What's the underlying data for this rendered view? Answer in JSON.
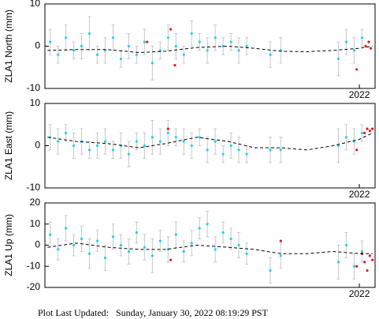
{
  "chart_data": [
    {
      "type": "scatter",
      "ylabel": "ZLA1 North (mm)",
      "xlim": [
        2016,
        2022.3
      ],
      "xticks": [
        2022
      ],
      "ylim": [
        -10,
        10
      ],
      "yticks": [
        -10,
        0,
        10
      ],
      "series": [
        {
          "color": "#22d3ee",
          "style": "points",
          "x": [
            2016.1,
            2016.25,
            2016.4,
            2016.55,
            2016.7,
            2016.85,
            2017.0,
            2017.15,
            2017.3,
            2017.45,
            2017.6,
            2017.75,
            2017.9,
            2018.05,
            2018.2,
            2018.35,
            2018.5,
            2018.65,
            2018.8,
            2018.95,
            2019.1,
            2019.25,
            2019.4,
            2019.55,
            2019.7,
            2019.85,
            2020.3,
            2020.5,
            2021.6,
            2021.75,
            2021.9,
            2022.05
          ],
          "values": [
            1,
            -2,
            2,
            -1,
            0,
            3,
            -2,
            -1,
            2,
            -3,
            0,
            -2,
            1,
            -4,
            -1,
            2,
            0,
            -2,
            3,
            1,
            -1,
            2,
            0,
            1,
            -1,
            0,
            -2,
            -1,
            -3,
            1,
            -1,
            2
          ],
          "errors": [
            3,
            2,
            3,
            2,
            3,
            4,
            2,
            3,
            3,
            2,
            3,
            2,
            3,
            4,
            2,
            3,
            3,
            2,
            3,
            2,
            3,
            3,
            2,
            2,
            3,
            2,
            3,
            3,
            4,
            3,
            3,
            2
          ]
        },
        {
          "color": "#e41a1c",
          "style": "points",
          "x": [
            2017.95,
            2018.4,
            2018.48,
            2021.95,
            2022.12,
            2022.18,
            2022.22
          ],
          "values": [
            1,
            4,
            -4.5,
            -5.5,
            0,
            1,
            -0.5
          ]
        },
        {
          "color": "#000000",
          "style": "dashed-line",
          "x": [
            2016.05,
            2016.6,
            2017.2,
            2017.8,
            2018.3,
            2018.9,
            2019.5,
            2020.0,
            2020.5,
            2021.0,
            2021.5,
            2022.0,
            2022.25
          ],
          "values": [
            -1,
            -0.8,
            -0.8,
            -1.5,
            -1.2,
            -0.3,
            0,
            -0.5,
            -1.2,
            -1.3,
            -1,
            -0.5,
            0
          ]
        }
      ]
    },
    {
      "type": "scatter",
      "ylabel": "ZLA1 East (mm)",
      "xlim": [
        2016,
        2022.3
      ],
      "xticks": [
        2022
      ],
      "ylim": [
        -10,
        10
      ],
      "yticks": [
        -10,
        0,
        10
      ],
      "series": [
        {
          "color": "#22d3ee",
          "style": "points",
          "x": [
            2016.1,
            2016.25,
            2016.4,
            2016.55,
            2016.7,
            2016.85,
            2017.0,
            2017.15,
            2017.3,
            2017.45,
            2017.6,
            2017.75,
            2017.9,
            2018.05,
            2018.2,
            2018.35,
            2018.5,
            2018.65,
            2018.8,
            2018.95,
            2019.1,
            2019.25,
            2019.4,
            2019.55,
            2019.7,
            2019.85,
            2020.3,
            2020.5,
            2021.6,
            2021.75,
            2021.9,
            2022.05
          ],
          "values": [
            2,
            1,
            3,
            0,
            1,
            -1,
            0,
            1,
            -1,
            0,
            -2,
            1,
            0,
            2,
            1,
            3,
            2,
            1,
            0,
            2,
            -1,
            1,
            -2,
            0,
            -1,
            -2,
            -1,
            -1,
            0,
            2,
            1,
            3
          ],
          "errors": [
            3,
            3,
            2,
            3,
            3,
            2,
            3,
            3,
            2,
            3,
            3,
            2,
            3,
            4,
            3,
            3,
            2,
            3,
            3,
            2,
            3,
            3,
            2,
            3,
            3,
            2,
            3,
            3,
            4,
            3,
            3,
            2
          ]
        },
        {
          "color": "#e41a1c",
          "style": "points",
          "x": [
            2018.35,
            2021.95,
            2022.1,
            2022.15,
            2022.2,
            2022.25
          ],
          "values": [
            4,
            -1,
            3,
            4,
            3.5,
            4
          ]
        },
        {
          "color": "#000000",
          "style": "dashed-line",
          "x": [
            2016.05,
            2016.6,
            2017.2,
            2017.8,
            2018.3,
            2018.9,
            2019.5,
            2020.0,
            2020.5,
            2021.0,
            2021.5,
            2022.0,
            2022.25
          ],
          "values": [
            2,
            1,
            0.5,
            -0.5,
            0.5,
            2,
            1,
            -0.5,
            -0.5,
            -1,
            0,
            1.5,
            3
          ]
        }
      ]
    },
    {
      "type": "scatter",
      "ylabel": "ZLA1 Up (mm)",
      "xlim": [
        2016,
        2022.3
      ],
      "xticks": [
        2022
      ],
      "ylim": [
        -20,
        20
      ],
      "yticks": [
        -20,
        -10,
        0,
        10,
        20
      ],
      "series": [
        {
          "color": "#22d3ee",
          "style": "points",
          "x": [
            2016.1,
            2016.25,
            2016.4,
            2016.55,
            2016.7,
            2016.85,
            2017.0,
            2017.15,
            2017.3,
            2017.45,
            2017.6,
            2017.75,
            2017.9,
            2018.05,
            2018.2,
            2018.35,
            2018.5,
            2018.65,
            2018.8,
            2018.95,
            2019.1,
            2019.25,
            2019.4,
            2019.55,
            2019.7,
            2019.85,
            2020.3,
            2020.5,
            2021.6,
            2021.75,
            2021.9,
            2022.05
          ],
          "values": [
            5,
            -2,
            8,
            0,
            3,
            -4,
            2,
            -6,
            4,
            0,
            -3,
            6,
            -1,
            -5,
            2,
            -2,
            5,
            -3,
            1,
            8,
            10,
            -2,
            6,
            3,
            0,
            -4,
            -12,
            -5,
            -8,
            0,
            -10,
            -3
          ],
          "errors": [
            6,
            5,
            6,
            5,
            6,
            7,
            5,
            6,
            6,
            5,
            6,
            5,
            6,
            8,
            5,
            6,
            6,
            5,
            6,
            5,
            6,
            6,
            5,
            5,
            6,
            5,
            6,
            6,
            8,
            6,
            6,
            5
          ]
        },
        {
          "color": "#e41a1c",
          "style": "points",
          "x": [
            2018.4,
            2020.5,
            2021.95,
            2022.05,
            2022.1,
            2022.15,
            2022.2,
            2022.25
          ],
          "values": [
            -7,
            2,
            -10,
            -4,
            -8,
            -12,
            -5,
            -7
          ]
        },
        {
          "color": "#000000",
          "style": "dashed-line",
          "x": [
            2016.05,
            2016.6,
            2017.2,
            2017.8,
            2018.3,
            2018.9,
            2019.5,
            2020.0,
            2020.5,
            2021.0,
            2021.5,
            2022.0,
            2022.25
          ],
          "values": [
            -1,
            1,
            -1,
            -2,
            -2,
            0,
            -1,
            -2,
            -4,
            -4,
            -3,
            -4,
            -4
          ]
        }
      ]
    }
  ],
  "footer": "Plot Last Updated:   Sunday, January 30, 2022 08:19:29 PST"
}
